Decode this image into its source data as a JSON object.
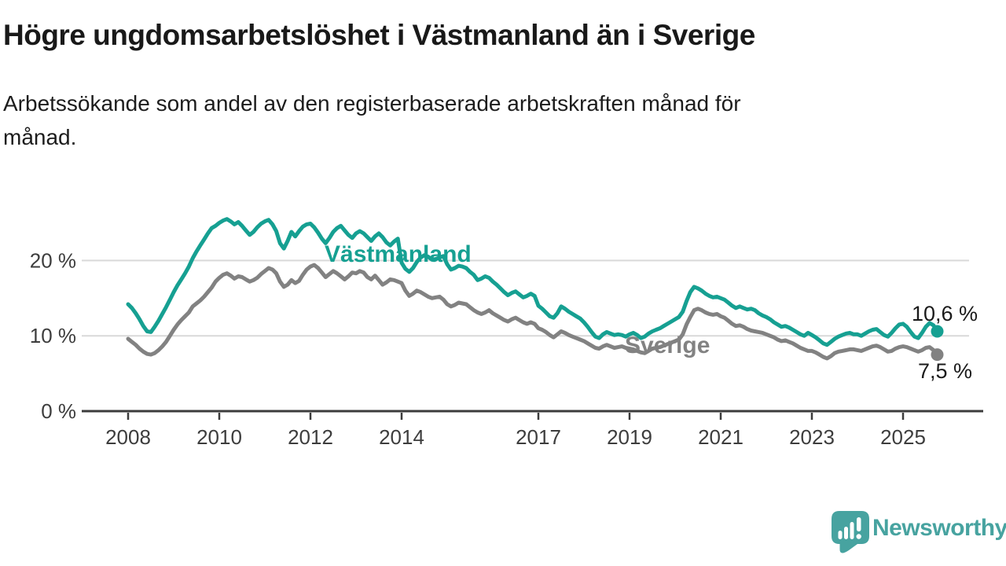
{
  "header": {
    "title": "Högre ungdomsarbetslöshet i Västmanland än i Sverige",
    "subtitle_line1": "Arbetssökande som andel av den registerbaserade arbetskraften månad för",
    "subtitle_line2": "månad."
  },
  "footer": {
    "brand": "Newsworthy",
    "logo_icon": "newsworthy-speech-bubble-bar-chart-icon",
    "brand_color": "#47a3a0"
  },
  "chart_data": {
    "type": "line",
    "title": "Högre ungdomsarbetslöshet i Västmanland än i Sverige",
    "subtitle": "Arbetssökande som andel av den registerbaserade arbetskraften månad för månad.",
    "x_start": "2008-01",
    "x_end": "2025-10",
    "frequency": "monthly",
    "x_ticks": [
      2008,
      2010,
      2012,
      2014,
      2017,
      2019,
      2021,
      2023,
      2025
    ],
    "y_ticks": [
      {
        "value": 0,
        "label": "0 %"
      },
      {
        "value": 10,
        "label": "10 %"
      },
      {
        "value": 20,
        "label": "20 %"
      }
    ],
    "ylim": [
      0,
      27
    ],
    "grid": "horizontal",
    "legend": "inline-labels-on-lines",
    "colors": {
      "grid": "#d9d9d9",
      "axis": "#3c3c3c",
      "tick_text": "#3d3d3d",
      "value_label_text": "#1a1a1a"
    },
    "series": [
      {
        "id": "vastmanland",
        "name": "Västmanland",
        "color": "#16a092",
        "end_value": 10.6,
        "end_label": "10,6 %",
        "values": [
          14.2,
          13.7,
          13.0,
          12.2,
          11.3,
          10.6,
          10.5,
          11.2,
          12.0,
          12.9,
          13.8,
          14.8,
          15.8,
          16.7,
          17.5,
          18.3,
          19.2,
          20.3,
          21.2,
          22.0,
          22.8,
          23.6,
          24.3,
          24.6,
          25.0,
          25.3,
          25.5,
          25.2,
          24.8,
          25.1,
          24.6,
          24.0,
          23.4,
          23.8,
          24.4,
          24.9,
          25.2,
          25.4,
          24.8,
          23.9,
          22.3,
          21.6,
          22.6,
          23.8,
          23.2,
          23.9,
          24.5,
          24.8,
          24.9,
          24.4,
          23.7,
          22.9,
          22.3,
          23.0,
          23.8,
          24.3,
          24.6,
          24.0,
          23.4,
          23.0,
          23.6,
          23.9,
          23.6,
          23.1,
          22.6,
          23.2,
          23.6,
          23.1,
          22.4,
          22.0,
          22.5,
          22.9,
          19.7,
          18.9,
          18.5,
          19.0,
          19.8,
          20.4,
          20.7,
          20.5,
          20.1,
          20.2,
          20.4,
          20.6,
          19.5,
          18.8,
          19.0,
          19.3,
          19.2,
          19.0,
          18.5,
          18.1,
          17.4,
          17.6,
          17.9,
          17.7,
          17.2,
          16.8,
          16.3,
          15.8,
          15.4,
          15.7,
          15.9,
          15.5,
          15.1,
          15.3,
          15.6,
          15.3,
          14.0,
          13.6,
          13.1,
          12.6,
          12.4,
          13.0,
          13.9,
          13.6,
          13.2,
          12.9,
          12.6,
          12.3,
          11.8,
          11.2,
          10.5,
          9.9,
          9.7,
          10.2,
          10.5,
          10.3,
          10.1,
          10.2,
          10.1,
          9.9,
          10.2,
          10.4,
          10.1,
          9.7,
          9.9,
          10.3,
          10.6,
          10.8,
          11.0,
          11.3,
          11.6,
          11.9,
          12.2,
          12.5,
          13.2,
          14.6,
          15.8,
          16.5,
          16.3,
          16.0,
          15.6,
          15.3,
          15.1,
          15.2,
          15.0,
          14.8,
          14.4,
          14.0,
          13.7,
          13.9,
          13.7,
          13.5,
          13.6,
          13.4,
          13.0,
          12.7,
          12.5,
          12.2,
          11.8,
          11.5,
          11.2,
          11.3,
          11.1,
          10.8,
          10.5,
          10.2,
          10.0,
          10.4,
          10.1,
          9.8,
          9.4,
          9.0,
          8.8,
          9.2,
          9.6,
          9.9,
          10.1,
          10.3,
          10.4,
          10.2,
          10.2,
          10.0,
          10.3,
          10.6,
          10.8,
          10.9,
          10.5,
          10.1,
          9.9,
          10.4,
          11.0,
          11.5,
          11.6,
          11.2,
          10.5,
          9.9,
          9.7,
          10.4,
          11.2,
          11.7,
          11.4,
          10.6
        ]
      },
      {
        "id": "sverige",
        "name": "Sverige",
        "color": "#828282",
        "end_value": 7.5,
        "end_label": "7,5 %",
        "values": [
          9.6,
          9.2,
          8.8,
          8.3,
          7.9,
          7.6,
          7.5,
          7.7,
          8.1,
          8.6,
          9.2,
          10.0,
          10.8,
          11.5,
          12.1,
          12.6,
          13.1,
          13.9,
          14.3,
          14.7,
          15.2,
          15.8,
          16.4,
          17.2,
          17.7,
          18.1,
          18.3,
          18.0,
          17.6,
          17.9,
          17.8,
          17.5,
          17.2,
          17.4,
          17.7,
          18.2,
          18.6,
          19.0,
          18.8,
          18.3,
          17.2,
          16.5,
          16.8,
          17.4,
          17.0,
          17.3,
          18.1,
          18.8,
          19.2,
          19.4,
          19.0,
          18.4,
          17.8,
          18.2,
          18.6,
          18.3,
          17.9,
          17.5,
          17.9,
          18.4,
          18.3,
          18.6,
          18.4,
          17.8,
          17.5,
          18.0,
          17.4,
          16.8,
          17.1,
          17.5,
          17.4,
          17.2,
          17.0,
          16.0,
          15.3,
          15.6,
          16.0,
          15.8,
          15.5,
          15.2,
          15.0,
          15.1,
          15.2,
          14.8,
          14.2,
          13.9,
          14.1,
          14.4,
          14.3,
          14.2,
          13.8,
          13.4,
          13.1,
          12.9,
          13.1,
          13.4,
          13.0,
          12.7,
          12.4,
          12.1,
          11.9,
          12.2,
          12.4,
          12.1,
          11.8,
          11.6,
          11.8,
          11.6,
          11.0,
          10.8,
          10.5,
          10.1,
          9.8,
          10.2,
          10.6,
          10.4,
          10.1,
          9.9,
          9.7,
          9.5,
          9.3,
          9.0,
          8.7,
          8.4,
          8.3,
          8.6,
          8.8,
          8.6,
          8.4,
          8.5,
          8.6,
          8.4,
          8.3,
          8.2,
          8.0,
          7.8,
          7.7,
          8.0,
          8.3,
          8.4,
          8.5,
          8.7,
          8.9,
          9.1,
          9.3,
          9.5,
          10.2,
          11.5,
          12.5,
          13.4,
          13.6,
          13.4,
          13.1,
          12.9,
          12.8,
          12.9,
          12.6,
          12.4,
          12.0,
          11.6,
          11.3,
          11.4,
          11.2,
          10.9,
          10.7,
          10.6,
          10.5,
          10.4,
          10.2,
          10.0,
          9.8,
          9.5,
          9.3,
          9.4,
          9.2,
          9.0,
          8.7,
          8.4,
          8.2,
          8.0,
          8.0,
          7.8,
          7.5,
          7.2,
          7.0,
          7.3,
          7.7,
          7.9,
          8.0,
          8.1,
          8.2,
          8.2,
          8.1,
          8.0,
          8.2,
          8.4,
          8.6,
          8.7,
          8.5,
          8.2,
          7.9,
          8.0,
          8.3,
          8.5,
          8.6,
          8.5,
          8.3,
          8.1,
          7.9,
          8.1,
          8.4,
          8.5,
          8.1,
          7.5
        ]
      }
    ]
  }
}
